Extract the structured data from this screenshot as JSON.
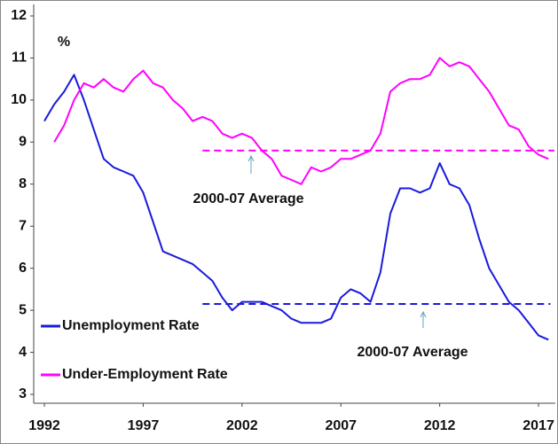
{
  "chart_data": {
    "type": "line",
    "ylabel": "%",
    "x": [
      1992,
      1992.5,
      1993,
      1993.5,
      1994,
      1994.5,
      1995,
      1995.5,
      1996,
      1996.5,
      1997,
      1997.5,
      1998,
      1998.5,
      1999,
      1999.5,
      2000,
      2000.5,
      2001,
      2001.5,
      2002,
      2002.5,
      2003,
      2003.5,
      2004,
      2004.5,
      2005,
      2005.5,
      2006,
      2006.5,
      2007,
      2007.5,
      2008,
      2008.5,
      2009,
      2009.5,
      2010,
      2010.5,
      2011,
      2011.5,
      2012,
      2012.5,
      2013,
      2013.5,
      2014,
      2014.5,
      2015,
      2015.5,
      2016,
      2016.5,
      2017,
      2017.5
    ],
    "series": [
      {
        "name": "Unemployment Rate",
        "color": "#1a1adc",
        "values": [
          9.5,
          9.9,
          10.2,
          10.6,
          10.0,
          9.3,
          8.6,
          8.4,
          8.3,
          8.2,
          7.8,
          7.1,
          6.4,
          6.3,
          6.2,
          6.1,
          5.9,
          5.7,
          5.3,
          5.0,
          5.2,
          5.2,
          5.2,
          5.1,
          5.0,
          4.8,
          4.7,
          4.7,
          4.7,
          4.8,
          5.3,
          5.5,
          5.4,
          5.2,
          5.9,
          7.3,
          7.9,
          7.9,
          7.8,
          7.9,
          8.5,
          8.0,
          7.9,
          7.5,
          6.7,
          6.0,
          5.6,
          5.2,
          5.0,
          4.7,
          4.4,
          4.3
        ]
      },
      {
        "name": "Under-Employment Rate",
        "color": "#ff00ff",
        "values": [
          null,
          9.0,
          9.4,
          10.0,
          10.4,
          10.3,
          10.5,
          10.3,
          10.2,
          10.5,
          10.7,
          10.4,
          10.3,
          10.0,
          9.8,
          9.5,
          9.6,
          9.5,
          9.2,
          9.1,
          9.2,
          9.1,
          8.8,
          8.6,
          8.2,
          8.1,
          8.0,
          8.4,
          8.3,
          8.4,
          8.6,
          8.6,
          8.7,
          8.8,
          9.2,
          10.2,
          10.4,
          10.5,
          10.5,
          10.6,
          11.0,
          10.8,
          10.9,
          10.8,
          10.5,
          10.2,
          9.8,
          9.4,
          9.3,
          8.9,
          8.7,
          8.6
        ]
      }
    ],
    "reference_lines": [
      {
        "value": 8.8,
        "color": "#ff00ff",
        "x_range": [
          2000,
          2017.8
        ],
        "label": "2000-07 Average"
      },
      {
        "value": 5.15,
        "color": "#1a1adc",
        "x_range": [
          2000,
          2017.6
        ],
        "label": "2000-07 Average"
      }
    ],
    "xlim": [
      1991.46,
      2017.85
    ],
    "xticks": [
      1992,
      1997,
      2002,
      2007,
      2012,
      2017
    ],
    "ylim": [
      3,
      12
    ],
    "yticks": [
      3,
      4,
      5,
      6,
      7,
      8,
      9,
      10,
      11,
      12
    ],
    "legend": "lower left"
  }
}
